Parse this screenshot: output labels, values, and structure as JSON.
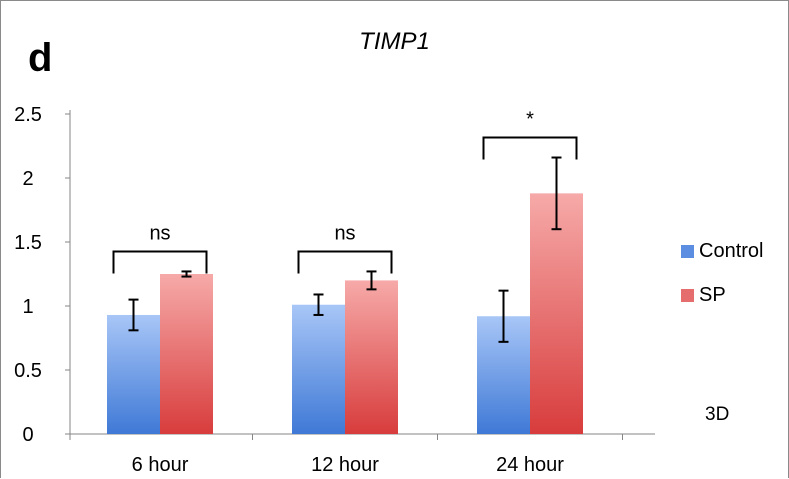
{
  "panel_label": "d",
  "note": "3D",
  "colors": {
    "control_top": "#a8c6f7",
    "control_bottom": "#3f79d6",
    "sp_top": "#f6aaa9",
    "sp_bottom": "#d83c3c",
    "control_swatch": "#5b8de0",
    "sp_swatch": "#e66d6d"
  },
  "chart_data": {
    "type": "bar",
    "title": "TIMP1",
    "xlabel": "",
    "ylabel": "",
    "categories": [
      "6 hour",
      "12 hour",
      "24 hour"
    ],
    "ylim": [
      0,
      2.5
    ],
    "yticks": [
      "0",
      "0.5",
      "1",
      "1.5",
      "2",
      "2.5"
    ],
    "grid": false,
    "legend_position": "right",
    "series": [
      {
        "name": "Control",
        "values": [
          0.93,
          1.01,
          0.92
        ],
        "errors": [
          0.12,
          0.08,
          0.2
        ]
      },
      {
        "name": "SP",
        "values": [
          1.25,
          1.2,
          1.88
        ],
        "errors": [
          0.02,
          0.07,
          0.28
        ]
      }
    ],
    "significance": [
      "ns",
      "ns",
      "*"
    ]
  }
}
